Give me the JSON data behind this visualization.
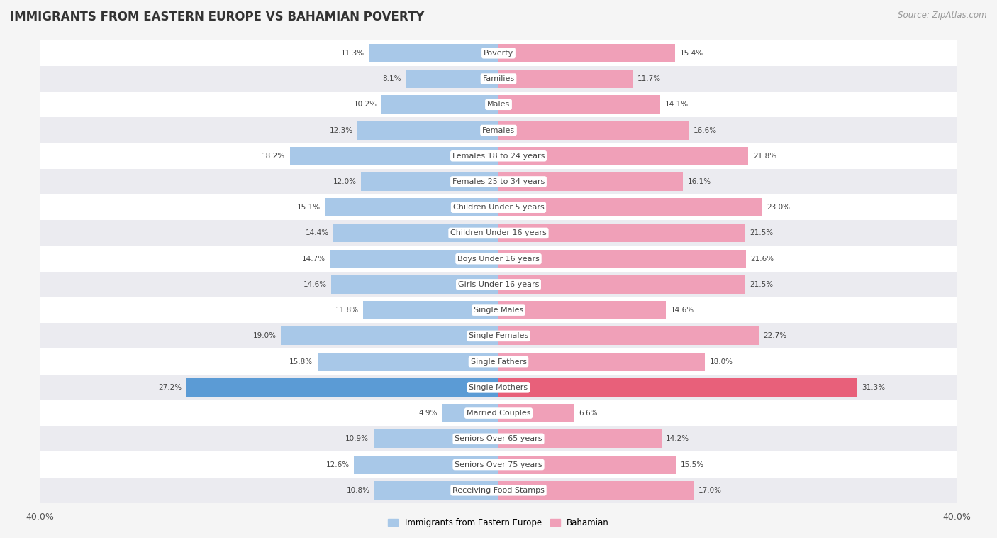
{
  "title": "IMMIGRANTS FROM EASTERN EUROPE VS BAHAMIAN POVERTY",
  "source": "Source: ZipAtlas.com",
  "categories": [
    "Poverty",
    "Families",
    "Males",
    "Females",
    "Females 18 to 24 years",
    "Females 25 to 34 years",
    "Children Under 5 years",
    "Children Under 16 years",
    "Boys Under 16 years",
    "Girls Under 16 years",
    "Single Males",
    "Single Females",
    "Single Fathers",
    "Single Mothers",
    "Married Couples",
    "Seniors Over 65 years",
    "Seniors Over 75 years",
    "Receiving Food Stamps"
  ],
  "left_values": [
    11.3,
    8.1,
    10.2,
    12.3,
    18.2,
    12.0,
    15.1,
    14.4,
    14.7,
    14.6,
    11.8,
    19.0,
    15.8,
    27.2,
    4.9,
    10.9,
    12.6,
    10.8
  ],
  "right_values": [
    15.4,
    11.7,
    14.1,
    16.6,
    21.8,
    16.1,
    23.0,
    21.5,
    21.6,
    21.5,
    14.6,
    22.7,
    18.0,
    31.3,
    6.6,
    14.2,
    15.5,
    17.0
  ],
  "left_color": "#A8C8E8",
  "right_color": "#F0A0B8",
  "highlight_color_left": "#5B9BD5",
  "highlight_color_right": "#E8607A",
  "highlight_row": 13,
  "axis_max": 40.0,
  "legend_left": "Immigrants from Eastern Europe",
  "legend_right": "Bahamian",
  "row_light": "#f0f0f5",
  "row_dark": "#e0e0ea",
  "title_fontsize": 12,
  "source_fontsize": 8.5,
  "label_fontsize": 8,
  "value_fontsize": 7.5,
  "axis_fontsize": 9
}
